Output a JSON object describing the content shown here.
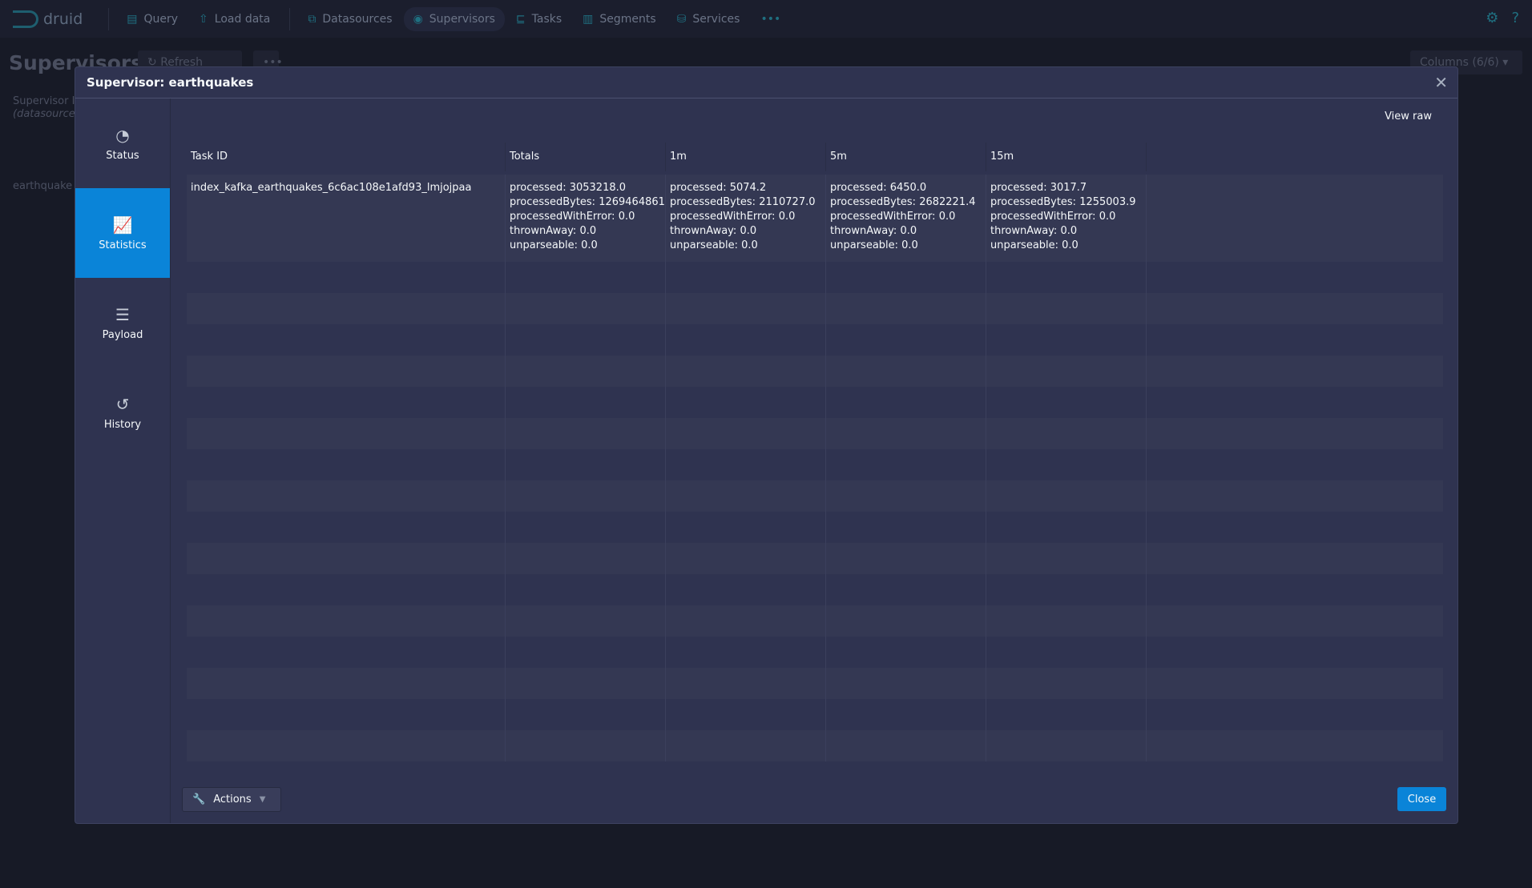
{
  "nav": {
    "brand": "druid",
    "items": [
      {
        "label": "Query",
        "icon": "query-icon"
      },
      {
        "label": "Load data",
        "icon": "upload-icon"
      },
      {
        "label": "Datasources",
        "icon": "datasources-icon"
      },
      {
        "label": "Supervisors",
        "icon": "eye-icon",
        "active": true
      },
      {
        "label": "Tasks",
        "icon": "tasks-icon"
      },
      {
        "label": "Segments",
        "icon": "segments-icon"
      },
      {
        "label": "Services",
        "icon": "database-icon"
      }
    ],
    "more": "•••"
  },
  "background": {
    "title": "Supervisors",
    "refresh": "Refresh",
    "more": "•••",
    "columns": "Columns (6/6)",
    "col_header": "Supervisor I",
    "col_sub": "(datasource",
    "row": "earthquake"
  },
  "modal": {
    "title": "Supervisor: earthquakes",
    "view_raw": "View raw",
    "close": "Close",
    "actions": "Actions",
    "tabs": [
      {
        "label": "Status",
        "icon": "gauge-icon"
      },
      {
        "label": "Statistics",
        "icon": "chart-icon",
        "active": true
      },
      {
        "label": "Payload",
        "icon": "align-left-icon"
      },
      {
        "label": "History",
        "icon": "history-icon"
      }
    ],
    "table": {
      "headers": [
        "Task ID",
        "Totals",
        "1m",
        "5m",
        "15m"
      ],
      "rows": [
        {
          "task_id": "index_kafka_earthquakes_6c6ac108e1afd93_lmjojpaa",
          "totals": [
            "processed: 3053218.0",
            "processedBytes: 1269464861",
            "processedWithError: 0.0",
            "thrownAway: 0.0",
            "unparseable: 0.0"
          ],
          "m1": [
            "processed: 5074.2",
            "processedBytes: 2110727.0",
            "processedWithError: 0.0",
            "thrownAway: 0.0",
            "unparseable: 0.0"
          ],
          "m5": [
            "processed: 6450.0",
            "processedBytes: 2682221.4",
            "processedWithError: 0.0",
            "thrownAway: 0.0",
            "unparseable: 0.0"
          ],
          "m15": [
            "processed: 3017.7",
            "processedBytes: 1255003.9",
            "processedWithError: 0.0",
            "thrownAway: 0.0",
            "unparseable: 0.0"
          ]
        }
      ]
    }
  }
}
